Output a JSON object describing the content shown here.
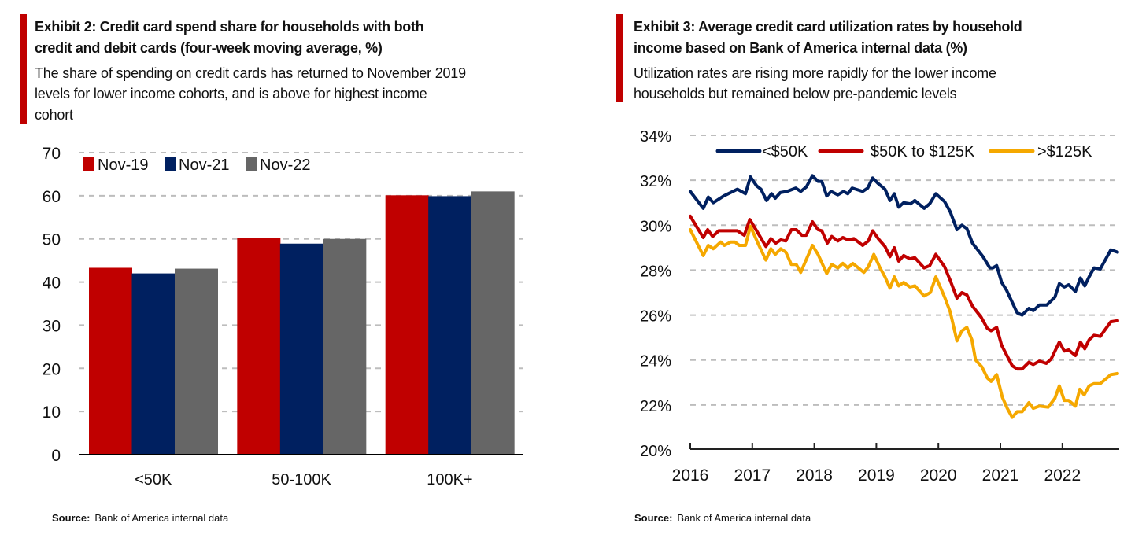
{
  "exhibit2": {
    "title_line1": "Exhibit 2: Credit card spend share for households with both",
    "title_line2": "credit and debit cards (four-week moving average, %)",
    "subtitle_line1": "The share of spending on credit cards has returned to November 2019",
    "subtitle_line2": "levels for lower income cohorts, and is above for highest income",
    "subtitle_line3": "cohort",
    "source_label": "Source:",
    "source_text": "Bank of America internal data"
  },
  "exhibit3": {
    "title_line1": "Exhibit 3: Average credit card utilization rates by household",
    "title_line2": "income based on Bank of America internal data (%)",
    "subtitle_line1": "Utilization rates are rising more rapidly for the lower income",
    "subtitle_line2": "households but remained below pre-pandemic levels",
    "source_label": "Source:",
    "source_text": "Bank of America internal data"
  },
  "colors": {
    "accent": "#c00000",
    "navy": "#002060",
    "gray": "#666666",
    "orange": "#f5a800"
  },
  "chart_data": [
    {
      "type": "bar",
      "title": "Exhibit 2: Credit card spend share for households with both credit and debit cards (four-week moving average, %)",
      "categories": [
        "<50K",
        "50-100K",
        "100K+"
      ],
      "series": [
        {
          "name": "Nov-19",
          "color": "#c00000",
          "values": [
            43.3,
            50.2,
            60.1
          ]
        },
        {
          "name": "Nov-21",
          "color": "#002060",
          "values": [
            42.0,
            48.9,
            59.9
          ]
        },
        {
          "name": "Nov-22",
          "color": "#666666",
          "values": [
            43.1,
            50.0,
            61.0
          ]
        }
      ],
      "ylim": [
        0,
        70
      ],
      "yticks": [
        0,
        10,
        20,
        30,
        40,
        50,
        60,
        70
      ],
      "grid": true,
      "legend": "top-left"
    },
    {
      "type": "line",
      "title": "Exhibit 3: Average credit card utilization rates by household income based on Bank of America internal data (%)",
      "xlim": [
        2016,
        2022.9
      ],
      "xticks": [
        "2016",
        "2017",
        "2018",
        "2019",
        "2020",
        "2021",
        "2022"
      ],
      "ylim": [
        20,
        34
      ],
      "yticks": [
        "20%",
        "22%",
        "24%",
        "26%",
        "28%",
        "30%",
        "32%",
        "34%"
      ],
      "grid": true,
      "legend": "top",
      "series": [
        {
          "name": "<$50K",
          "color": "#002060",
          "points": [
            [
              2016.0,
              31.5
            ],
            [
              2016.21,
              30.75
            ],
            [
              2016.29,
              31.25
            ],
            [
              2016.37,
              31.0
            ],
            [
              2016.54,
              31.3
            ],
            [
              2016.76,
              31.6
            ],
            [
              2016.89,
              31.4
            ],
            [
              2016.97,
              32.15
            ],
            [
              2017.07,
              31.75
            ],
            [
              2017.14,
              31.6
            ],
            [
              2017.23,
              31.1
            ],
            [
              2017.31,
              31.4
            ],
            [
              2017.37,
              31.2
            ],
            [
              2017.45,
              31.45
            ],
            [
              2017.56,
              31.5
            ],
            [
              2017.7,
              31.65
            ],
            [
              2017.78,
              31.5
            ],
            [
              2017.87,
              31.7
            ],
            [
              2017.97,
              32.2
            ],
            [
              2018.06,
              31.95
            ],
            [
              2018.12,
              31.95
            ],
            [
              2018.2,
              31.3
            ],
            [
              2018.27,
              31.5
            ],
            [
              2018.38,
              31.35
            ],
            [
              2018.47,
              31.5
            ],
            [
              2018.54,
              31.4
            ],
            [
              2018.61,
              31.65
            ],
            [
              2018.78,
              31.5
            ],
            [
              2018.86,
              31.65
            ],
            [
              2018.94,
              32.1
            ],
            [
              2019.03,
              31.85
            ],
            [
              2019.14,
              31.6
            ],
            [
              2019.22,
              31.1
            ],
            [
              2019.29,
              31.4
            ],
            [
              2019.36,
              30.8
            ],
            [
              2019.44,
              31.0
            ],
            [
              2019.55,
              30.95
            ],
            [
              2019.62,
              31.1
            ],
            [
              2019.77,
              30.75
            ],
            [
              2019.86,
              30.95
            ],
            [
              2019.96,
              31.4
            ],
            [
              2020.1,
              31.05
            ],
            [
              2020.19,
              30.6
            ],
            [
              2020.3,
              29.8
            ],
            [
              2020.38,
              30.0
            ],
            [
              2020.46,
              29.85
            ],
            [
              2020.55,
              29.2
            ],
            [
              2020.72,
              28.6
            ],
            [
              2020.83,
              28.1
            ],
            [
              2020.88,
              28.1
            ],
            [
              2020.94,
              28.2
            ],
            [
              2021.02,
              27.45
            ],
            [
              2021.1,
              27.1
            ],
            [
              2021.27,
              26.1
            ],
            [
              2021.35,
              26.0
            ],
            [
              2021.46,
              26.3
            ],
            [
              2021.53,
              26.2
            ],
            [
              2021.63,
              26.45
            ],
            [
              2021.75,
              26.45
            ],
            [
              2021.88,
              26.8
            ],
            [
              2021.95,
              27.4
            ],
            [
              2022.03,
              27.25
            ],
            [
              2022.1,
              27.35
            ],
            [
              2022.21,
              27.05
            ],
            [
              2022.29,
              27.65
            ],
            [
              2022.36,
              27.3
            ],
            [
              2022.43,
              27.7
            ],
            [
              2022.51,
              28.1
            ],
            [
              2022.61,
              28.05
            ],
            [
              2022.78,
              28.9
            ],
            [
              2022.89,
              28.8
            ]
          ]
        },
        {
          "name": "$50K to $125K",
          "color": "#c00000",
          "points": [
            [
              2016.0,
              30.4
            ],
            [
              2016.21,
              29.45
            ],
            [
              2016.28,
              29.8
            ],
            [
              2016.36,
              29.5
            ],
            [
              2016.46,
              29.75
            ],
            [
              2016.76,
              29.75
            ],
            [
              2016.87,
              29.55
            ],
            [
              2016.96,
              30.25
            ],
            [
              2017.07,
              29.75
            ],
            [
              2017.22,
              29.05
            ],
            [
              2017.3,
              29.4
            ],
            [
              2017.38,
              29.2
            ],
            [
              2017.46,
              29.35
            ],
            [
              2017.54,
              29.3
            ],
            [
              2017.63,
              29.8
            ],
            [
              2017.71,
              29.8
            ],
            [
              2017.8,
              29.55
            ],
            [
              2017.87,
              29.55
            ],
            [
              2017.97,
              30.15
            ],
            [
              2018.06,
              29.8
            ],
            [
              2018.12,
              29.75
            ],
            [
              2018.21,
              29.2
            ],
            [
              2018.28,
              29.5
            ],
            [
              2018.38,
              29.3
            ],
            [
              2018.46,
              29.45
            ],
            [
              2018.54,
              29.35
            ],
            [
              2018.64,
              29.4
            ],
            [
              2018.78,
              29.1
            ],
            [
              2018.87,
              29.3
            ],
            [
              2018.94,
              29.75
            ],
            [
              2019.03,
              29.4
            ],
            [
              2019.14,
              29.05
            ],
            [
              2019.22,
              28.6
            ],
            [
              2019.29,
              29.0
            ],
            [
              2019.36,
              28.4
            ],
            [
              2019.44,
              28.65
            ],
            [
              2019.54,
              28.5
            ],
            [
              2019.62,
              28.55
            ],
            [
              2019.77,
              28.1
            ],
            [
              2019.86,
              28.2
            ],
            [
              2019.96,
              28.7
            ],
            [
              2020.1,
              28.15
            ],
            [
              2020.19,
              27.55
            ],
            [
              2020.3,
              26.75
            ],
            [
              2020.38,
              27.0
            ],
            [
              2020.46,
              26.9
            ],
            [
              2020.55,
              26.4
            ],
            [
              2020.69,
              25.9
            ],
            [
              2020.79,
              25.4
            ],
            [
              2020.85,
              25.3
            ],
            [
              2020.94,
              25.45
            ],
            [
              2021.02,
              24.65
            ],
            [
              2021.19,
              23.75
            ],
            [
              2021.27,
              23.6
            ],
            [
              2021.35,
              23.6
            ],
            [
              2021.46,
              23.9
            ],
            [
              2021.53,
              23.8
            ],
            [
              2021.63,
              23.95
            ],
            [
              2021.74,
              23.85
            ],
            [
              2021.82,
              24.05
            ],
            [
              2021.95,
              24.8
            ],
            [
              2022.03,
              24.4
            ],
            [
              2022.1,
              24.45
            ],
            [
              2022.21,
              24.2
            ],
            [
              2022.29,
              24.8
            ],
            [
              2022.36,
              24.5
            ],
            [
              2022.43,
              24.9
            ],
            [
              2022.51,
              25.1
            ],
            [
              2022.61,
              25.05
            ],
            [
              2022.78,
              25.7
            ],
            [
              2022.89,
              25.75
            ]
          ]
        },
        {
          "name": ">$125K",
          "color": "#f5a800",
          "points": [
            [
              2016.0,
              29.8
            ],
            [
              2016.21,
              28.65
            ],
            [
              2016.29,
              29.1
            ],
            [
              2016.37,
              28.95
            ],
            [
              2016.49,
              29.25
            ],
            [
              2016.55,
              29.1
            ],
            [
              2016.65,
              29.25
            ],
            [
              2016.72,
              29.25
            ],
            [
              2016.79,
              29.1
            ],
            [
              2016.89,
              29.1
            ],
            [
              2016.97,
              29.95
            ],
            [
              2017.09,
              29.2
            ],
            [
              2017.22,
              28.45
            ],
            [
              2017.3,
              28.95
            ],
            [
              2017.37,
              28.7
            ],
            [
              2017.46,
              28.95
            ],
            [
              2017.54,
              28.8
            ],
            [
              2017.63,
              28.25
            ],
            [
              2017.71,
              28.25
            ],
            [
              2017.78,
              27.9
            ],
            [
              2017.97,
              29.1
            ],
            [
              2018.06,
              28.7
            ],
            [
              2018.2,
              27.85
            ],
            [
              2018.28,
              28.25
            ],
            [
              2018.38,
              28.1
            ],
            [
              2018.46,
              28.3
            ],
            [
              2018.54,
              28.1
            ],
            [
              2018.62,
              28.3
            ],
            [
              2018.8,
              27.9
            ],
            [
              2018.87,
              28.15
            ],
            [
              2018.96,
              28.7
            ],
            [
              2019.06,
              28.1
            ],
            [
              2019.14,
              27.7
            ],
            [
              2019.22,
              27.2
            ],
            [
              2019.29,
              27.7
            ],
            [
              2019.36,
              27.3
            ],
            [
              2019.44,
              27.45
            ],
            [
              2019.54,
              27.25
            ],
            [
              2019.62,
              27.3
            ],
            [
              2019.77,
              26.85
            ],
            [
              2019.87,
              27.0
            ],
            [
              2019.96,
              27.7
            ],
            [
              2020.1,
              26.8
            ],
            [
              2020.19,
              26.15
            ],
            [
              2020.3,
              24.85
            ],
            [
              2020.38,
              25.3
            ],
            [
              2020.46,
              25.45
            ],
            [
              2020.54,
              24.9
            ],
            [
              2020.6,
              24.0
            ],
            [
              2020.7,
              23.7
            ],
            [
              2020.79,
              23.2
            ],
            [
              2020.85,
              23.05
            ],
            [
              2020.94,
              23.35
            ],
            [
              2021.03,
              22.35
            ],
            [
              2021.11,
              21.85
            ],
            [
              2021.19,
              21.45
            ],
            [
              2021.27,
              21.7
            ],
            [
              2021.35,
              21.7
            ],
            [
              2021.46,
              22.1
            ],
            [
              2021.53,
              21.85
            ],
            [
              2021.63,
              21.95
            ],
            [
              2021.77,
              21.9
            ],
            [
              2021.88,
              22.3
            ],
            [
              2021.95,
              22.85
            ],
            [
              2022.03,
              22.2
            ],
            [
              2022.1,
              22.2
            ],
            [
              2022.21,
              21.95
            ],
            [
              2022.28,
              22.7
            ],
            [
              2022.35,
              22.45
            ],
            [
              2022.43,
              22.85
            ],
            [
              2022.51,
              22.95
            ],
            [
              2022.61,
              22.95
            ],
            [
              2022.78,
              23.35
            ],
            [
              2022.89,
              23.4
            ]
          ]
        }
      ]
    }
  ]
}
